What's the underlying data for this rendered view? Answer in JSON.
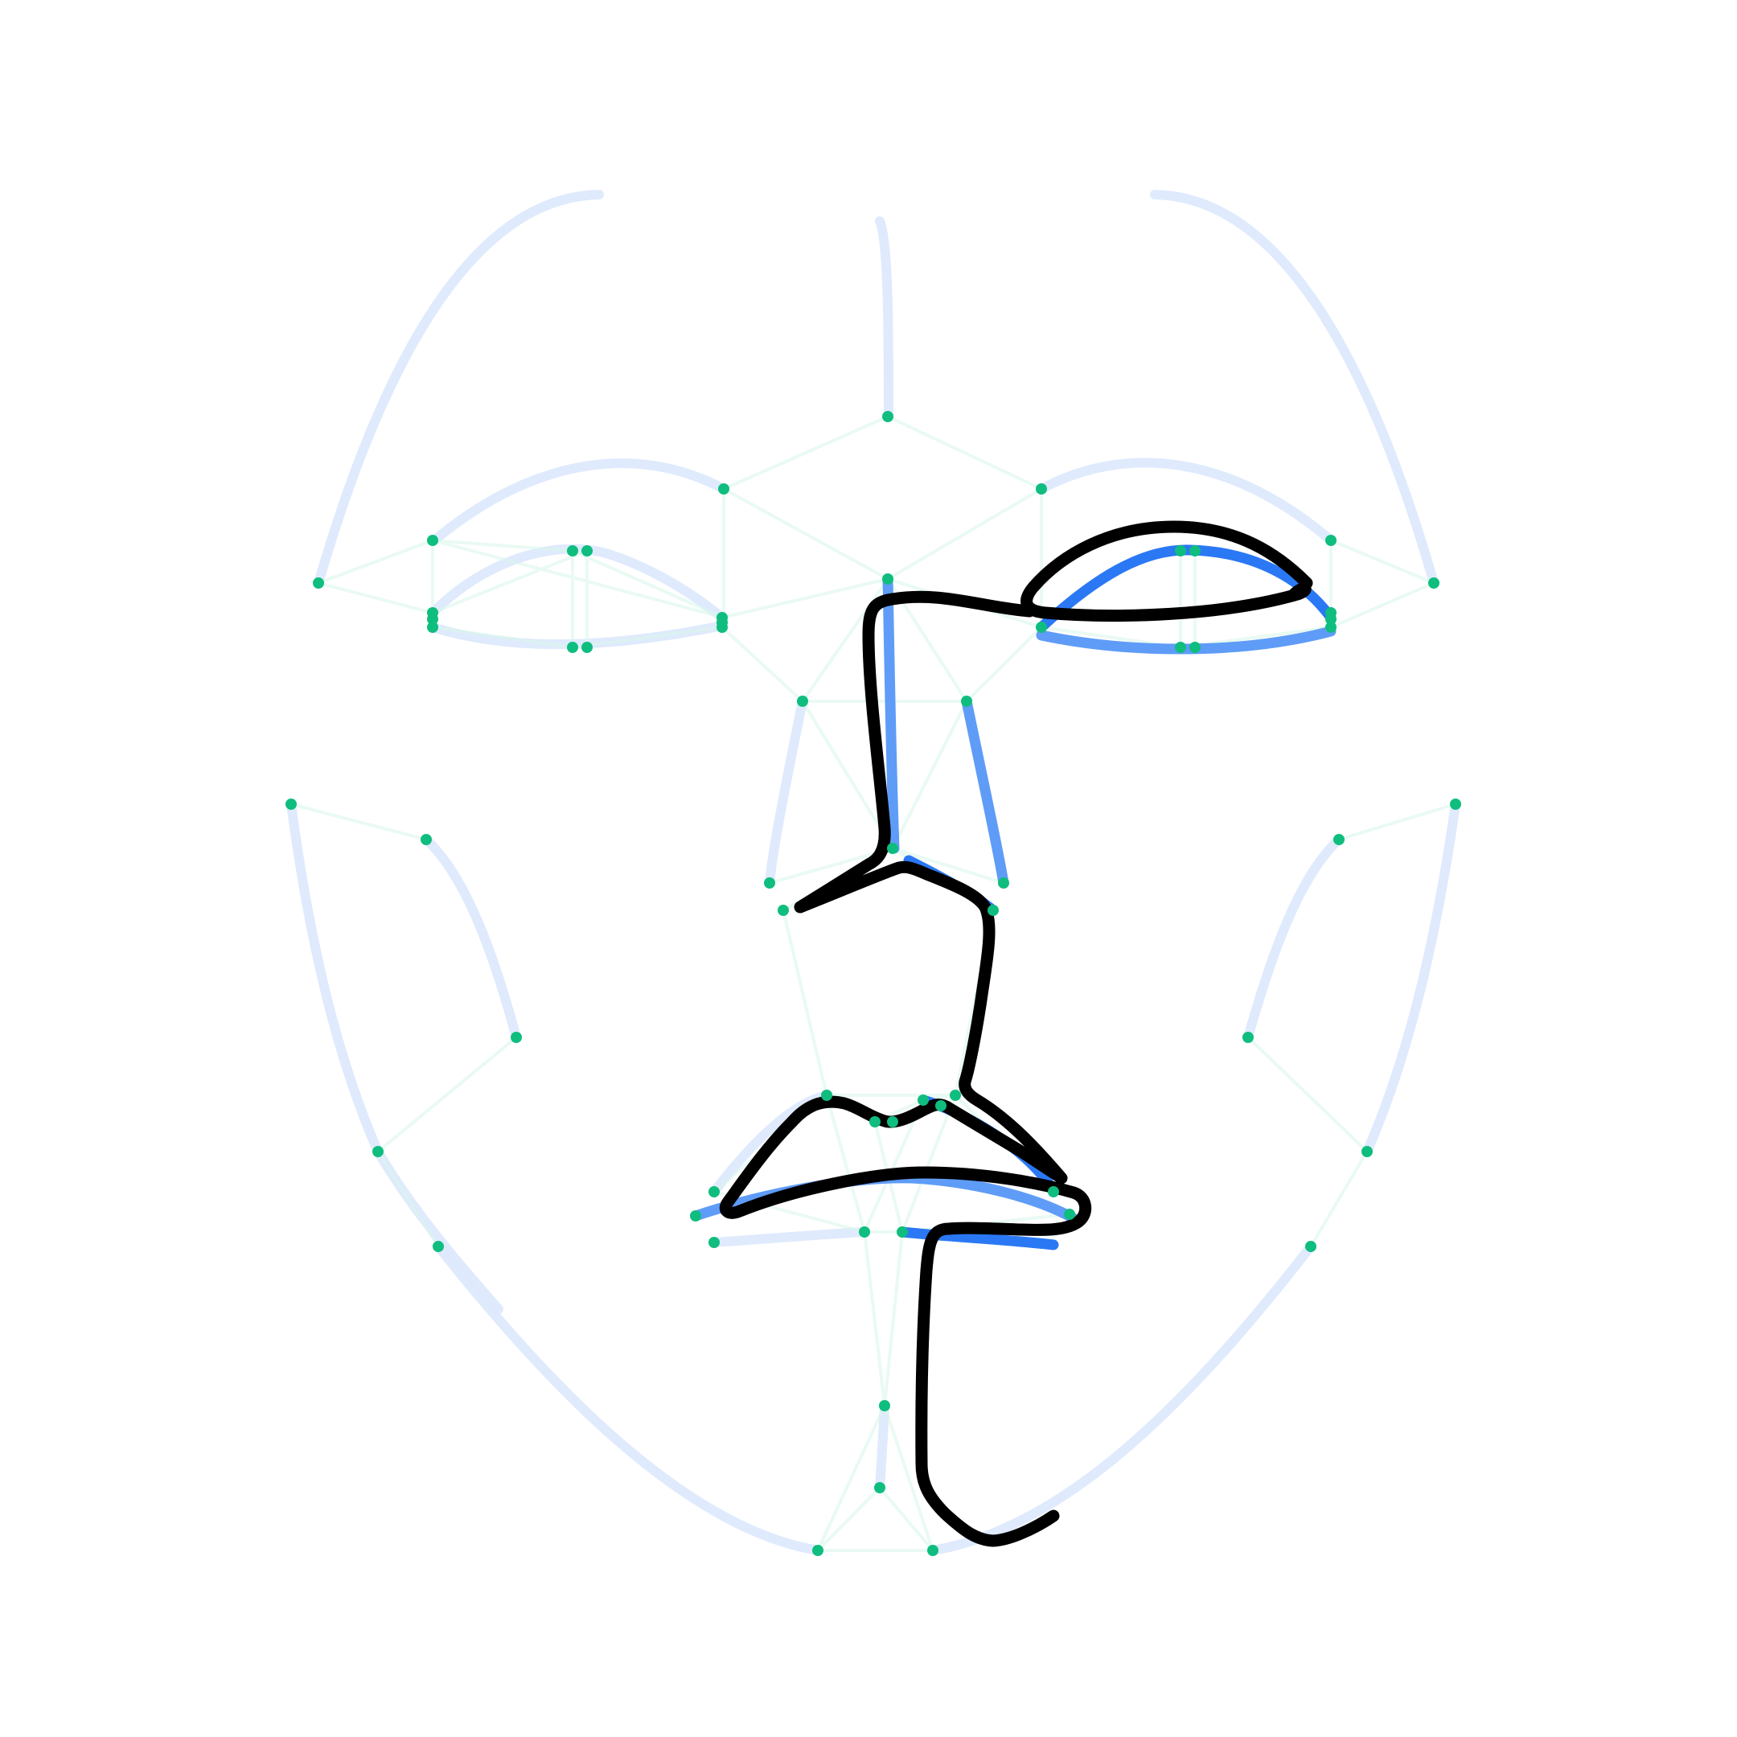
{
  "colors": {
    "background": "#ffffff",
    "guide_stroke": "#dde9fd",
    "mesh_stroke": "#d7f5ea",
    "landmark_dot": "#0fbd7f",
    "traced_stroke": "#2b78f5",
    "traced_stroke_light": "#5f9cf7",
    "ink_stroke": "#000000"
  },
  "icons": {
    "landmark": "filled-circle",
    "drawing": "freehand-line"
  }
}
